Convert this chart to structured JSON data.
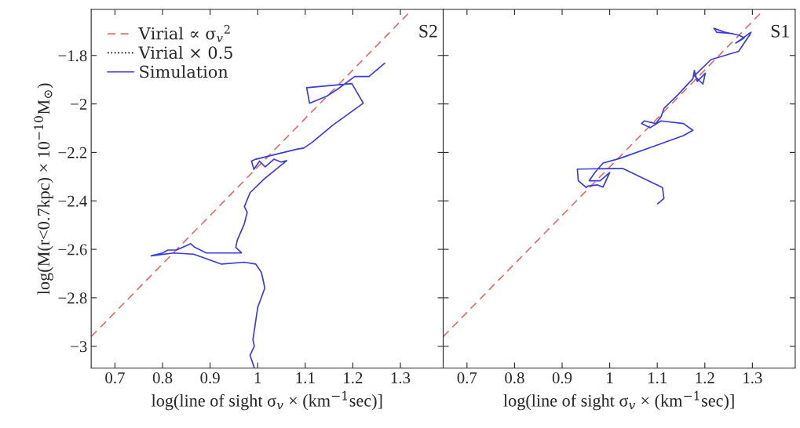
{
  "chart_data": [
    {
      "type": "line",
      "xlabel": "log(line of sight σ$_{v}$ × (km$^{−1}$sec)]",
      "ylabel": "log(M(r<0.7kpc) × 10$^{−10}$M$_{⊙}$)",
      "xlim": [
        0.65,
        1.39
      ],
      "ylim": [
        -3.09,
        -1.61
      ],
      "xticks": [
        0.7,
        0.8,
        0.9,
        1,
        1.1,
        1.2,
        1.3
      ],
      "yticks": [
        {
          "value": -1.8,
          "label": "−1.8"
        },
        {
          "value": -2,
          "label": "−2"
        },
        {
          "value": -2.2,
          "label": "−2.2"
        },
        {
          "value": -2.4,
          "label": "−2.4"
        },
        {
          "value": -2.6,
          "label": "−2.6"
        },
        {
          "value": -2.8,
          "label": "−2.8"
        },
        {
          "value": -3,
          "label": "−3"
        }
      ],
      "legend": "top left",
      "grid": false,
      "annotations": [
        "S2"
      ],
      "series": [
        {
          "name": "Virial ∝ σ$_{v}$$^{2}$",
          "color": "#d9706a",
          "line_style": "dashed",
          "x": [
            0.65,
            1.32
          ],
          "values": [
            -2.96,
            -1.62
          ]
        },
        {
          "name": "Virial × 0.5",
          "color": "#000000",
          "line_style": "dotted"
        },
        {
          "name": "Simulation",
          "color": "#3a3ad8",
          "line_style": "solid",
          "x": [
            0.993,
            0.984,
            0.993,
            0.99,
            1.0,
            1.015,
            1.008,
            0.996,
            0.972,
            0.924,
            0.865,
            0.823,
            0.776,
            0.8,
            0.811,
            0.829,
            0.859,
            0.868,
            0.892,
            0.966,
            0.954,
            0.957,
            0.972,
            0.978,
            0.972,
            0.984,
            1.014,
            1.061,
            1.049,
            1.034,
            1.016,
            1.004,
            0.992,
            0.987,
            0.996,
            1.082,
            1.097,
            1.115,
            1.157,
            1.198,
            1.222,
            1.198,
            1.103,
            1.109,
            1.145,
            1.168,
            1.204,
            1.234,
            1.267
          ],
          "values": [
            -3.09,
            -3.037,
            -3.0,
            -2.973,
            -2.84,
            -2.76,
            -2.696,
            -2.661,
            -2.653,
            -2.661,
            -2.62,
            -2.615,
            -2.627,
            -2.615,
            -2.603,
            -2.603,
            -2.577,
            -2.592,
            -2.615,
            -2.615,
            -2.592,
            -2.563,
            -2.494,
            -2.447,
            -2.424,
            -2.366,
            -2.309,
            -2.234,
            -2.24,
            -2.228,
            -2.26,
            -2.236,
            -2.27,
            -2.236,
            -2.228,
            -2.187,
            -2.182,
            -2.158,
            -2.089,
            -2.031,
            -1.997,
            -1.916,
            -1.933,
            -1.997,
            -1.968,
            -1.939,
            -1.887,
            -1.887,
            -1.832
          ]
        }
      ]
    },
    {
      "type": "line",
      "xlabel": "log(line of sight σ$_{v}$ × (km$^{−1}$sec)]",
      "xlim": [
        0.65,
        1.39
      ],
      "ylim": [
        -3.09,
        -1.61
      ],
      "xticks": [
        0.7,
        0.8,
        0.9,
        1,
        1.1,
        1.2,
        1.3
      ],
      "tick_labels": "x",
      "grid": false,
      "annotations": [
        "S1"
      ],
      "yticks": [
        {
          "value": -1.8,
          "label": null
        },
        {
          "value": -2,
          "label": null
        },
        {
          "value": -2.2,
          "label": null
        },
        {
          "value": -2.4,
          "label": null
        },
        {
          "value": -2.6,
          "label": null
        },
        {
          "value": -2.8,
          "label": null
        },
        {
          "value": -3,
          "label": null
        }
      ],
      "series": [
        {
          "color": "#d9706a",
          "line_style": "dashed",
          "x": [
            0.65,
            1.32
          ],
          "values": [
            -2.96,
            -1.62
          ]
        },
        {
          "color": "#3a3ad8",
          "line_style": "solid",
          "x": [
            1.101,
            1.114,
            1.111,
            1.027,
            0.932,
            0.934,
            0.951,
            0.954,
            0.974,
            0.986,
            1.0,
            0.98,
            0.957,
            0.969,
            0.986,
            1.021,
            1.091,
            1.155,
            1.175,
            1.155,
            1.108,
            1.085,
            1.067,
            1.073,
            1.097,
            1.108,
            1.114,
            1.143,
            1.175,
            1.178,
            1.184,
            1.201,
            1.196,
            1.178,
            1.213,
            1.271,
            1.294,
            1.297,
            1.265,
            1.283,
            1.271,
            1.242,
            1.219,
            1.225,
            1.259
          ],
          "values": [
            -2.412,
            -2.39,
            -2.345,
            -2.266,
            -2.269,
            -2.317,
            -2.345,
            -2.339,
            -2.334,
            -2.343,
            -2.283,
            -2.317,
            -2.317,
            -2.283,
            -2.244,
            -2.225,
            -2.176,
            -2.131,
            -2.109,
            -2.081,
            -2.07,
            -2.098,
            -2.081,
            -2.07,
            -2.081,
            -2.053,
            -2.019,
            -1.963,
            -1.896,
            -1.862,
            -1.907,
            -1.873,
            -1.918,
            -1.884,
            -1.817,
            -1.783,
            -1.716,
            -1.704,
            -1.749,
            -1.727,
            -1.716,
            -1.704,
            -1.688,
            -1.704,
            -1.71
          ]
        }
      ]
    }
  ]
}
